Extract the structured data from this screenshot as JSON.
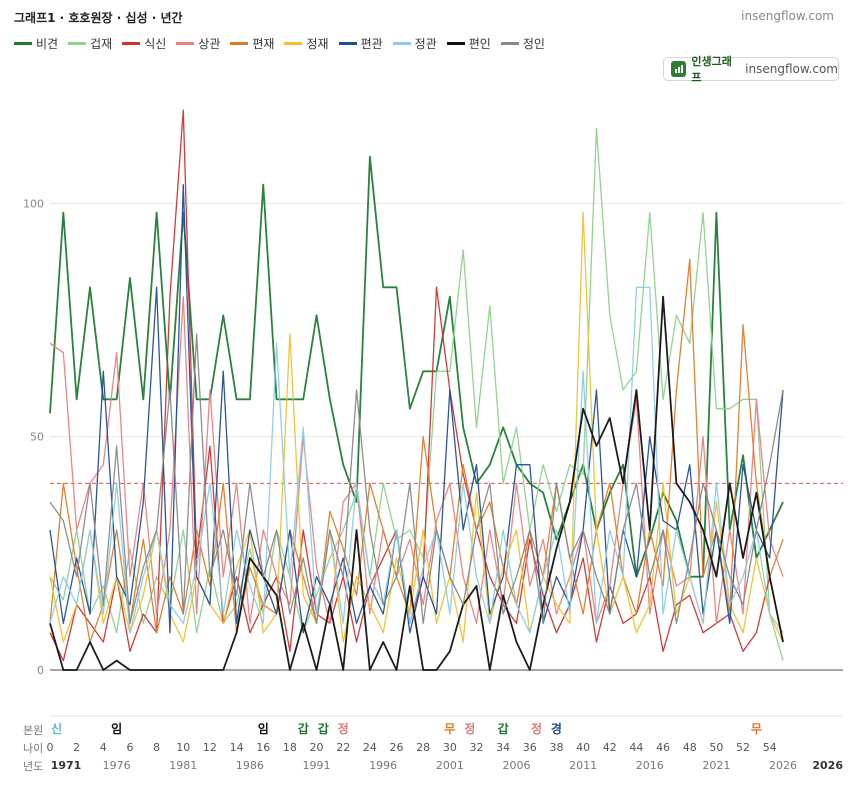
{
  "header": {
    "title": "그래프1 · 호호원장 · 십성 · 년간",
    "site": "insengflow.com"
  },
  "brand": {
    "name": "인생그래프",
    "site": "insengflow.com",
    "color": "#2e7d32"
  },
  "row_labels": {
    "base": "본원",
    "age": "나이",
    "year": "년도"
  },
  "chart_data": {
    "type": "line",
    "x": [
      0,
      1,
      2,
      3,
      4,
      5,
      6,
      7,
      8,
      9,
      10,
      11,
      12,
      13,
      14,
      15,
      16,
      17,
      18,
      19,
      20,
      21,
      22,
      23,
      24,
      25,
      26,
      27,
      28,
      29,
      30,
      31,
      32,
      33,
      34,
      35,
      36,
      37,
      38,
      39,
      40,
      41,
      42,
      43,
      44,
      45,
      46,
      47,
      48,
      49,
      50,
      51,
      52,
      53,
      54,
      55
    ],
    "xlim": [
      0,
      59.5
    ],
    "ylim": [
      0,
      120
    ],
    "yticks": [
      0,
      50,
      100
    ],
    "reference_line": 40,
    "reference_color": "#e05252",
    "series": [
      {
        "name": "비견",
        "color": "#1e7b34",
        "values": [
          55,
          98,
          58,
          82,
          58,
          58,
          84,
          58,
          98,
          58,
          98,
          58,
          58,
          76,
          58,
          58,
          104,
          58,
          58,
          58,
          76,
          58,
          44,
          36,
          110,
          82,
          82,
          56,
          64,
          64,
          80,
          52,
          40,
          44,
          52,
          44,
          40,
          38,
          28,
          36,
          44,
          30,
          38,
          44,
          20,
          28,
          38,
          32,
          20,
          20,
          98,
          30,
          46,
          24,
          30,
          36
        ]
      },
      {
        "name": "겁재",
        "color": "#8fd18e",
        "values": [
          20,
          15,
          30,
          12,
          18,
          8,
          26,
          10,
          20,
          14,
          30,
          8,
          22,
          10,
          14,
          26,
          12,
          30,
          20,
          8,
          16,
          24,
          30,
          38,
          20,
          40,
          28,
          30,
          24,
          64,
          64,
          90,
          52,
          78,
          40,
          52,
          30,
          44,
          34,
          44,
          42,
          116,
          76,
          60,
          64,
          98,
          58,
          76,
          70,
          98,
          56,
          56,
          58,
          58,
          12,
          2
        ]
      },
      {
        "name": "식신",
        "color": "#d32f2f",
        "values": [
          8,
          2,
          14,
          10,
          6,
          20,
          4,
          12,
          8,
          80,
          120,
          24,
          48,
          10,
          20,
          8,
          14,
          20,
          4,
          30,
          12,
          10,
          20,
          6,
          18,
          24,
          30,
          10,
          20,
          82,
          60,
          42,
          30,
          20,
          14,
          10,
          28,
          16,
          8,
          14,
          24,
          6,
          18,
          10,
          12,
          20,
          4,
          14,
          16,
          8,
          10,
          12,
          4,
          8,
          20,
          6
        ]
      },
      {
        "name": "상관",
        "color": "#ec7f7f",
        "values": [
          70,
          68,
          30,
          40,
          44,
          68,
          20,
          40,
          12,
          30,
          80,
          12,
          60,
          20,
          40,
          10,
          30,
          20,
          14,
          50,
          22,
          10,
          36,
          40,
          12,
          30,
          20,
          28,
          14,
          32,
          40,
          20,
          10,
          30,
          14,
          40,
          18,
          28,
          12,
          20,
          30,
          10,
          18,
          40,
          58,
          12,
          30,
          18,
          20,
          50,
          10,
          30,
          12,
          58,
          28,
          20
        ]
      },
      {
        "name": "편재",
        "color": "#e07b27",
        "values": [
          10,
          40,
          22,
          6,
          14,
          30,
          10,
          28,
          8,
          20,
          12,
          30,
          18,
          40,
          8,
          22,
          14,
          12,
          30,
          20,
          10,
          34,
          26,
          16,
          40,
          30,
          20,
          12,
          50,
          30,
          20,
          44,
          30,
          36,
          22,
          14,
          30,
          20,
          40,
          24,
          12,
          30,
          40,
          20,
          12,
          30,
          18,
          60,
          88,
          20,
          30,
          12,
          74,
          40,
          20,
          28
        ]
      },
      {
        "name": "정재",
        "color": "#f2c12e",
        "values": [
          20,
          6,
          14,
          30,
          10,
          20,
          8,
          16,
          30,
          12,
          6,
          20,
          14,
          10,
          22,
          30,
          8,
          12,
          72,
          16,
          10,
          30,
          6,
          20,
          14,
          8,
          24,
          12,
          30,
          10,
          20,
          6,
          38,
          10,
          22,
          30,
          8,
          20,
          14,
          10,
          98,
          30,
          12,
          20,
          8,
          14,
          40,
          12,
          20,
          10,
          36,
          14,
          8,
          24,
          12,
          6
        ]
      },
      {
        "name": "편관",
        "color": "#1f4e96",
        "values": [
          30,
          10,
          24,
          12,
          64,
          20,
          14,
          36,
          82,
          8,
          104,
          20,
          14,
          64,
          10,
          30,
          20,
          12,
          30,
          8,
          20,
          14,
          24,
          10,
          18,
          12,
          30,
          8,
          20,
          12,
          60,
          30,
          44,
          12,
          20,
          44,
          44,
          10,
          20,
          14,
          30,
          60,
          12,
          30,
          20,
          50,
          32,
          30,
          44,
          12,
          30,
          10,
          44,
          30,
          24,
          60
        ]
      },
      {
        "name": "정관",
        "color": "#8ccde6",
        "values": [
          10,
          20,
          14,
          30,
          12,
          40,
          8,
          20,
          30,
          14,
          10,
          22,
          40,
          12,
          30,
          18,
          10,
          70,
          20,
          52,
          12,
          30,
          10,
          40,
          20,
          14,
          30,
          10,
          22,
          30,
          12,
          40,
          20,
          10,
          30,
          14,
          8,
          20,
          30,
          12,
          64,
          10,
          30,
          20,
          82,
          82,
          12,
          30,
          20,
          10,
          40,
          14,
          20,
          30,
          12,
          8
        ]
      },
      {
        "name": "편인",
        "color": "#111111",
        "values": [
          10,
          0,
          0,
          6,
          0,
          2,
          0,
          0,
          0,
          0,
          0,
          0,
          0,
          0,
          8,
          24,
          20,
          16,
          0,
          10,
          0,
          14,
          0,
          30,
          0,
          6,
          0,
          18,
          0,
          0,
          4,
          14,
          18,
          0,
          16,
          6,
          0,
          14,
          26,
          36,
          56,
          48,
          54,
          40,
          60,
          30,
          80,
          40,
          36,
          30,
          20,
          40,
          24,
          38,
          20,
          6
        ]
      },
      {
        "name": "정인",
        "color": "#888888",
        "values": [
          36,
          32,
          20,
          40,
          14,
          48,
          10,
          22,
          30,
          60,
          12,
          72,
          20,
          30,
          16,
          40,
          20,
          30,
          12,
          24,
          10,
          30,
          20,
          60,
          30,
          14,
          20,
          40,
          10,
          30,
          20,
          14,
          30,
          40,
          12,
          20,
          30,
          10,
          40,
          24,
          30,
          20,
          12,
          30,
          40,
          20,
          30,
          10,
          24,
          40,
          30,
          20,
          14,
          30,
          44,
          60
        ]
      }
    ],
    "x_ticks": [
      {
        "x": 0,
        "age": "0",
        "year": "1971"
      },
      {
        "x": 2,
        "age": "2",
        "year": ""
      },
      {
        "x": 4,
        "age": "4",
        "year": ""
      },
      {
        "x": 5,
        "age": "",
        "year": "1976"
      },
      {
        "x": 6,
        "age": "6",
        "year": ""
      },
      {
        "x": 8,
        "age": "8",
        "year": ""
      },
      {
        "x": 10,
        "age": "10",
        "year": "1981"
      },
      {
        "x": 12,
        "age": "12",
        "year": ""
      },
      {
        "x": 14,
        "age": "14",
        "year": ""
      },
      {
        "x": 15,
        "age": "",
        "year": "1986"
      },
      {
        "x": 16,
        "age": "16",
        "year": ""
      },
      {
        "x": 18,
        "age": "18",
        "year": ""
      },
      {
        "x": 20,
        "age": "20",
        "year": "1991"
      },
      {
        "x": 22,
        "age": "22",
        "year": ""
      },
      {
        "x": 24,
        "age": "24",
        "year": ""
      },
      {
        "x": 25,
        "age": "",
        "year": "1996"
      },
      {
        "x": 26,
        "age": "26",
        "year": ""
      },
      {
        "x": 28,
        "age": "28",
        "year": ""
      },
      {
        "x": 30,
        "age": "30",
        "year": "2001"
      },
      {
        "x": 32,
        "age": "32",
        "year": ""
      },
      {
        "x": 34,
        "age": "34",
        "year": ""
      },
      {
        "x": 35,
        "age": "",
        "year": "2006"
      },
      {
        "x": 36,
        "age": "36",
        "year": ""
      },
      {
        "x": 38,
        "age": "38",
        "year": ""
      },
      {
        "x": 40,
        "age": "40",
        "year": "2011"
      },
      {
        "x": 42,
        "age": "42",
        "year": ""
      },
      {
        "x": 44,
        "age": "44",
        "year": ""
      },
      {
        "x": 45,
        "age": "",
        "year": "2016"
      },
      {
        "x": 46,
        "age": "46",
        "year": ""
      },
      {
        "x": 48,
        "age": "48",
        "year": ""
      },
      {
        "x": 50,
        "age": "50",
        "year": "2021"
      },
      {
        "x": 52,
        "age": "52",
        "year": ""
      },
      {
        "x": 54,
        "age": "54",
        "year": ""
      },
      {
        "x": 55,
        "age": "",
        "year": "2026"
      }
    ],
    "end_year_label": "2026",
    "base_markers": [
      {
        "x": 0.5,
        "text": "신",
        "color": "#5bb8d8"
      },
      {
        "x": 5,
        "text": "임",
        "color": "#111111"
      },
      {
        "x": 16,
        "text": "임",
        "color": "#111111"
      },
      {
        "x": 19,
        "text": "갑",
        "color": "#1e7b34"
      },
      {
        "x": 20.5,
        "text": "갑",
        "color": "#1e7b34"
      },
      {
        "x": 22,
        "text": "정",
        "color": "#e07b7b"
      },
      {
        "x": 30,
        "text": "무",
        "color": "#e07b27"
      },
      {
        "x": 31.5,
        "text": "정",
        "color": "#e07b7b"
      },
      {
        "x": 34,
        "text": "갑",
        "color": "#1e7b34"
      },
      {
        "x": 36.5,
        "text": "정",
        "color": "#e07b7b"
      },
      {
        "x": 38,
        "text": "경",
        "color": "#1f4e96"
      },
      {
        "x": 53,
        "text": "무",
        "color": "#e07b27"
      }
    ]
  }
}
